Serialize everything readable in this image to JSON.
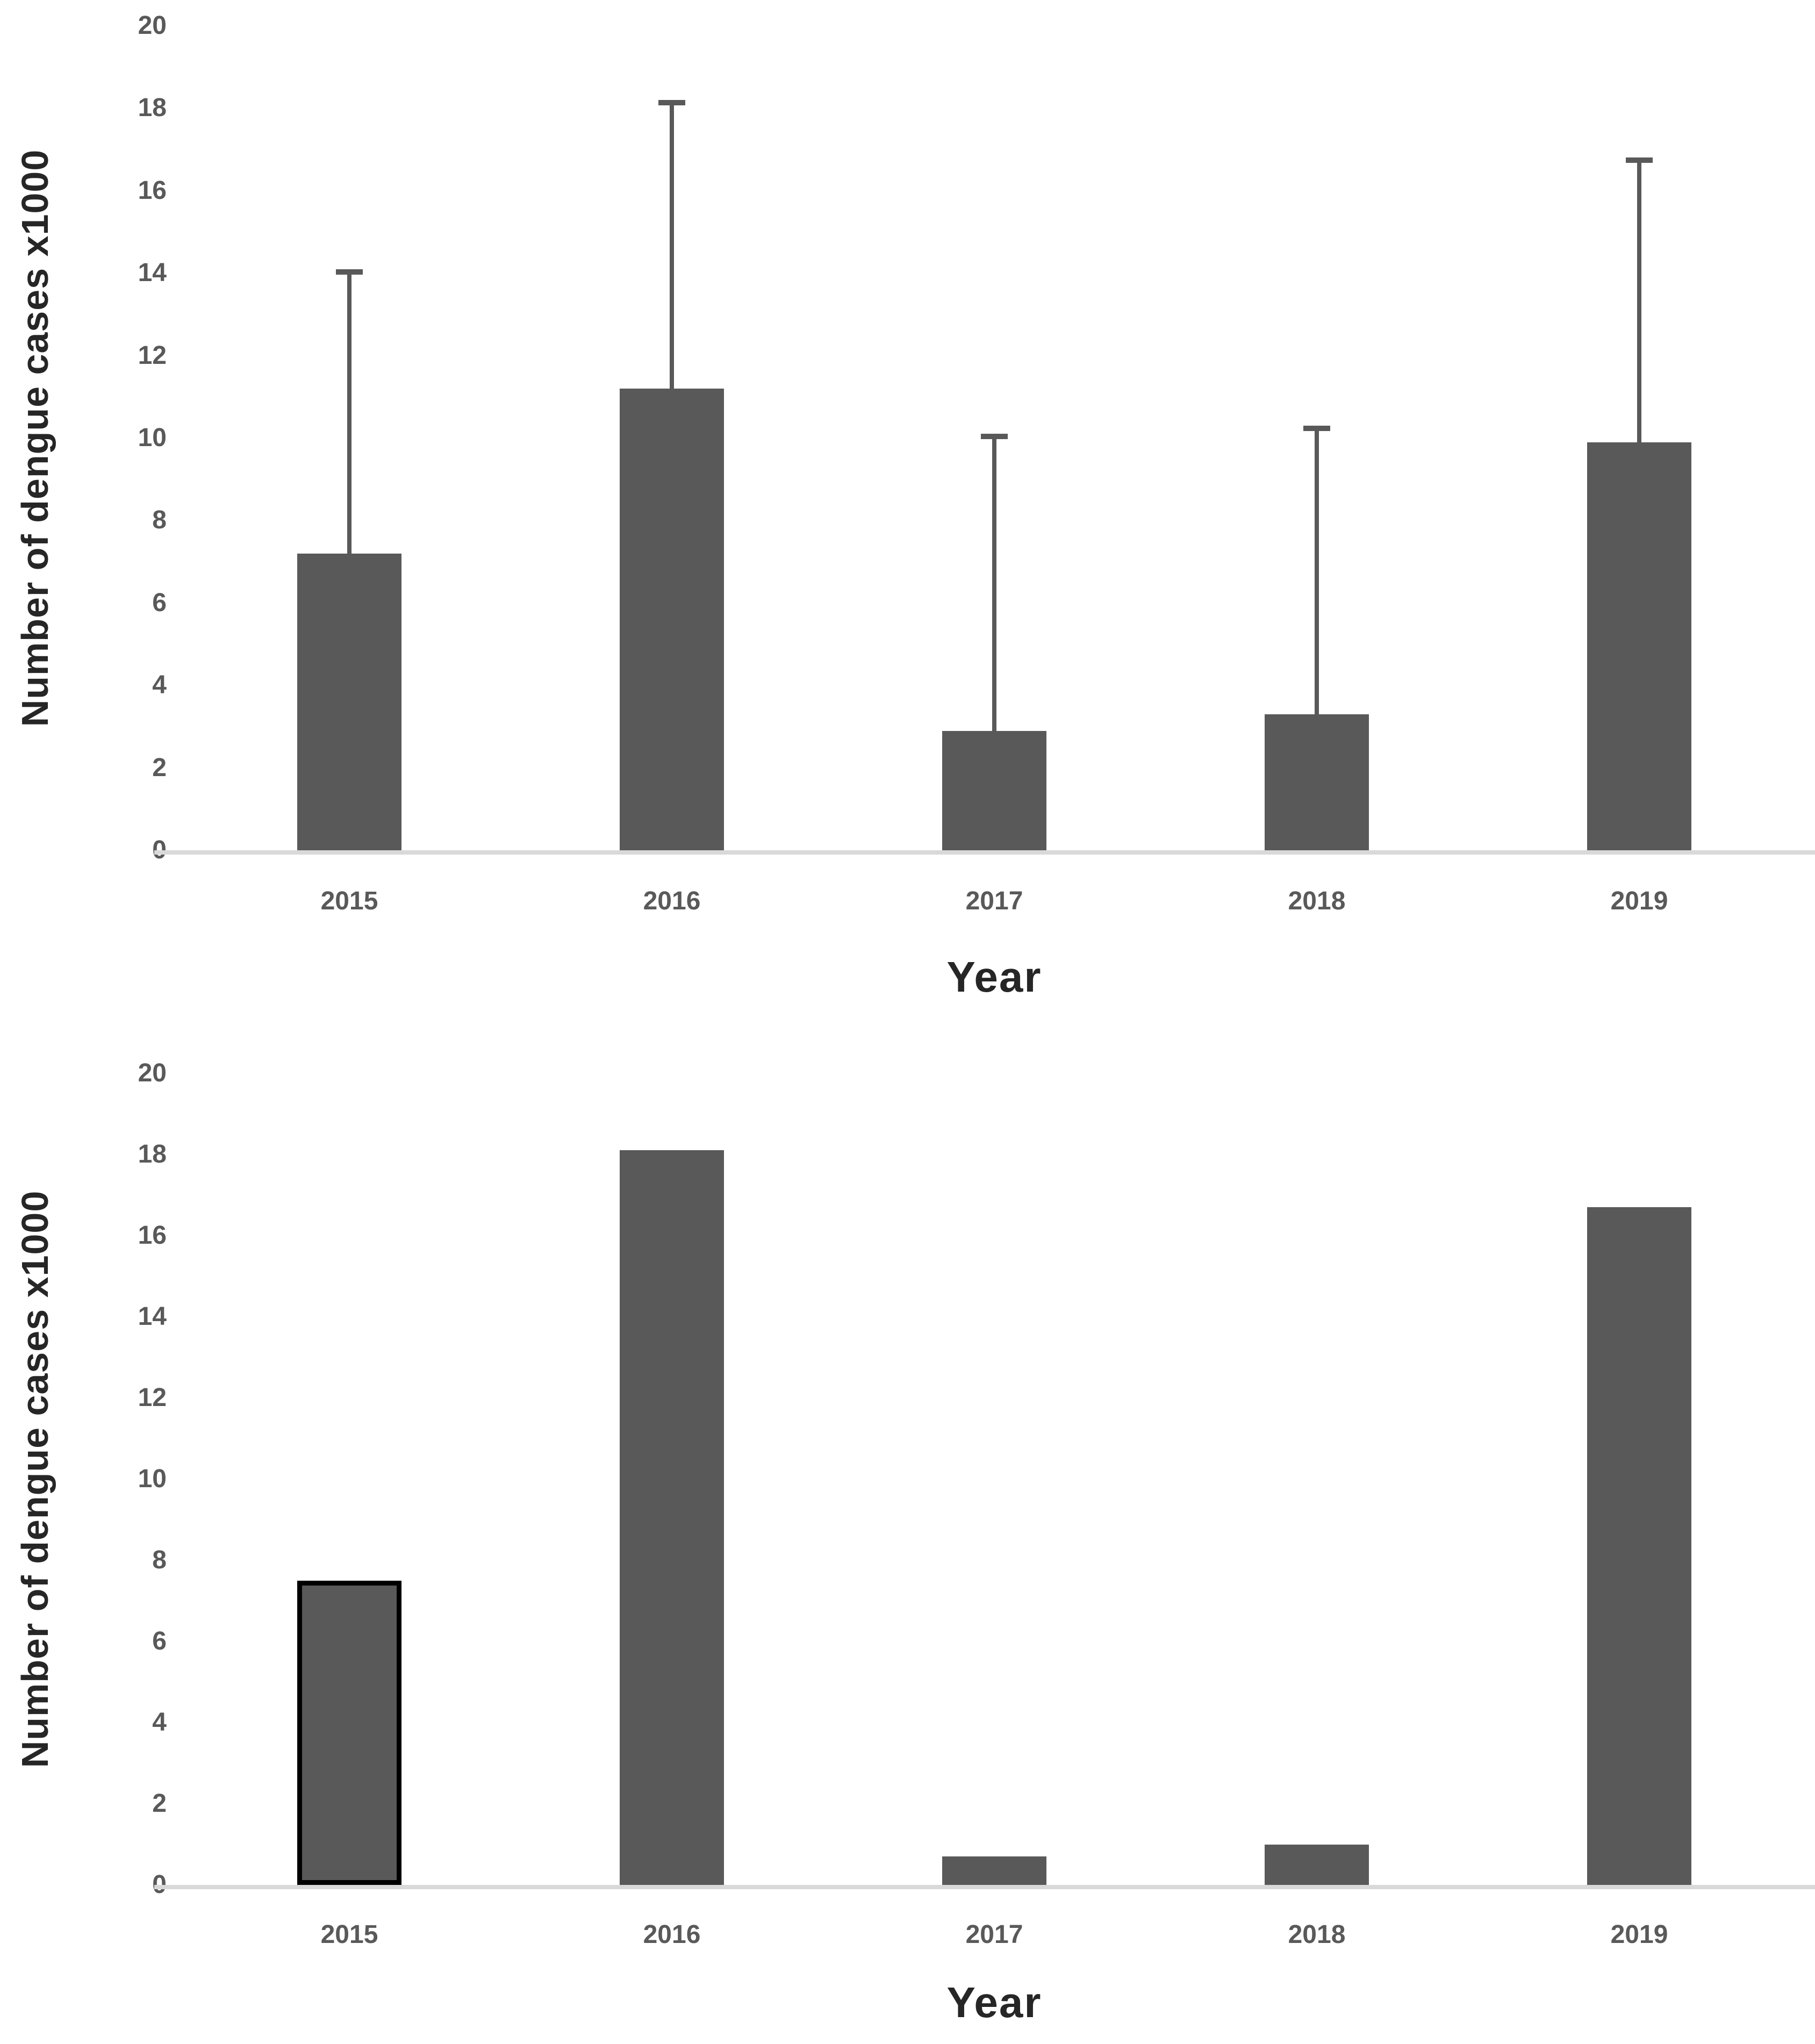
{
  "style": {
    "bar_color": "#595959",
    "axis_line_color": "#d9d9d9",
    "tick_label_color": "#595959",
    "axis_title_color": "#262626",
    "background": "#ffffff",
    "highlight_outline_color": "#000000"
  },
  "chart_data": [
    {
      "type": "bar",
      "title": "",
      "xlabel": "Year",
      "ylabel": "Number of dengue cases x1000",
      "categories": [
        "2015",
        "2016",
        "2017",
        "2018",
        "2019"
      ],
      "values": [
        7.2,
        11.2,
        2.9,
        3.3,
        9.9
      ],
      "error_bars": true,
      "error_upper_tops": [
        14.1,
        18.2,
        10.1,
        10.3,
        16.8
      ],
      "ylim": [
        0,
        20
      ],
      "yticks": [
        0,
        2,
        4,
        6,
        8,
        10,
        12,
        14,
        16,
        18,
        20
      ],
      "grid": false,
      "legend": false,
      "outlined_category": null
    },
    {
      "type": "bar",
      "title": "",
      "xlabel": "Year",
      "ylabel": "Number of dengue cases x1000",
      "categories": [
        "2015",
        "2016",
        "2017",
        "2018",
        "2019"
      ],
      "values": [
        7.5,
        18.1,
        0.7,
        1.0,
        16.7
      ],
      "error_bars": false,
      "error_upper_tops": null,
      "ylim": [
        0,
        20
      ],
      "yticks": [
        0,
        2,
        4,
        6,
        8,
        10,
        12,
        14,
        16,
        18,
        20
      ],
      "grid": false,
      "legend": false,
      "outlined_category": "2015"
    }
  ]
}
